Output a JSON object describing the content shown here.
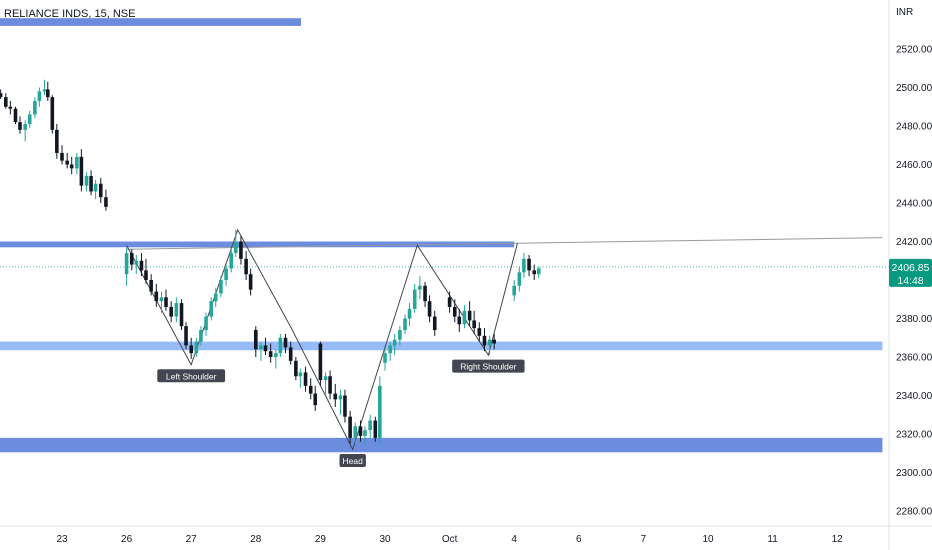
{
  "chart_data": {
    "type": "candlestick",
    "title": "RELIANCE INDS, 15, NSE",
    "currency": "INR",
    "y_ticks": [
      2280,
      2300,
      2320,
      2340,
      2360,
      2380,
      2400,
      2420,
      2440,
      2460,
      2480,
      2500,
      2520
    ],
    "y_tick_labels": [
      "2280.00",
      "2300.00",
      "2320.00",
      "2340.00",
      "2360.00",
      "2380.00",
      "2400.00",
      "2420.00",
      "2440.00",
      "2460.00",
      "2480.00",
      "2500.00",
      "2520.00"
    ],
    "ylim": [
      2272,
      2542
    ],
    "x_labels": [
      "23",
      "26",
      "27",
      "28",
      "29",
      "30",
      "Oct",
      "4",
      "6",
      "7",
      "10",
      "11",
      "12"
    ],
    "session_positions": [
      0,
      1,
      2,
      3,
      4,
      5,
      6,
      7,
      8,
      9,
      10,
      11,
      12
    ],
    "current_price": {
      "value": 2406.85,
      "label": "2406.85",
      "countdown": "14:48"
    },
    "zones": [
      {
        "from_session": -1,
        "to_session": 7.0,
        "low": 2417.0,
        "high": 2420.0,
        "color": "#5b7fdb"
      },
      {
        "from_session": -1,
        "to_session": 12.7,
        "low": 2363.5,
        "high": 2368.0,
        "color": "#8cb4f5"
      },
      {
        "from_session": -1,
        "to_session": 12.7,
        "low": 2310.5,
        "high": 2318.0,
        "color": "#5b7fdb"
      },
      {
        "from_session": -1,
        "to_session": 3.7,
        "low": 2532.0,
        "high": 2536.0,
        "color": "#5b7fdb"
      }
    ],
    "neckline": {
      "from": [
        1.0,
        2416
      ],
      "to": [
        12.7,
        2422
      ]
    },
    "pattern_line": [
      [
        1.0,
        2418
      ],
      [
        2.0,
        2356
      ],
      [
        2.72,
        2426
      ],
      [
        3.55,
        2375
      ],
      [
        4.5,
        2312
      ],
      [
        5.5,
        2418
      ],
      [
        6.6,
        2361
      ],
      [
        7.05,
        2419
      ]
    ],
    "pattern_labels": [
      {
        "text": "Left Shoulder",
        "session": 2.0,
        "price": 2350
      },
      {
        "text": "Head",
        "session": 4.5,
        "price": 2306
      },
      {
        "text": "Right Shoulder",
        "session": 6.6,
        "price": 2355
      }
    ],
    "candles": [
      [
        -0.95,
        2497,
        2499,
        2494,
        2495
      ],
      [
        -0.87,
        2495,
        2497,
        2489,
        2490
      ],
      [
        -0.8,
        2490,
        2493,
        2486,
        2489
      ],
      [
        -0.72,
        2489,
        2490,
        2481,
        2482
      ],
      [
        -0.65,
        2482,
        2485,
        2476,
        2478
      ],
      [
        -0.57,
        2478,
        2483,
        2472,
        2481
      ],
      [
        -0.5,
        2481,
        2488,
        2479,
        2486
      ],
      [
        -0.42,
        2486,
        2495,
        2484,
        2493
      ],
      [
        -0.35,
        2493,
        2500,
        2490,
        2498
      ],
      [
        -0.27,
        2498,
        2504,
        2496,
        2499
      ],
      [
        -0.22,
        2499,
        2503,
        2493,
        2495
      ],
      [
        -0.15,
        2495,
        2496,
        2476,
        2478
      ],
      [
        -0.08,
        2478,
        2481,
        2463,
        2466
      ],
      [
        0.0,
        2466,
        2470,
        2460,
        2462
      ],
      [
        0.08,
        2462,
        2466,
        2458,
        2460
      ],
      [
        0.15,
        2460,
        2464,
        2455,
        2458
      ],
      [
        0.23,
        2458,
        2466,
        2455,
        2464
      ],
      [
        0.3,
        2464,
        2468,
        2446,
        2449
      ],
      [
        0.38,
        2449,
        2456,
        2446,
        2454
      ],
      [
        0.45,
        2454,
        2457,
        2444,
        2446
      ],
      [
        0.52,
        2446,
        2452,
        2442,
        2450
      ],
      [
        0.6,
        2450,
        2453,
        2440,
        2443
      ],
      [
        0.68,
        2443,
        2447,
        2436,
        2438
      ],
      [
        1.0,
        2403,
        2417,
        2397,
        2414
      ],
      [
        1.08,
        2414,
        2416,
        2405,
        2408
      ],
      [
        1.15,
        2408,
        2413,
        2403,
        2410
      ],
      [
        1.23,
        2410,
        2414,
        2402,
        2405
      ],
      [
        1.3,
        2405,
        2411,
        2398,
        2400
      ],
      [
        1.38,
        2400,
        2403,
        2392,
        2394
      ],
      [
        1.46,
        2394,
        2398,
        2386,
        2389
      ],
      [
        1.54,
        2389,
        2394,
        2383,
        2391
      ],
      [
        1.61,
        2391,
        2395,
        2384,
        2386
      ],
      [
        1.69,
        2386,
        2389,
        2378,
        2381
      ],
      [
        1.77,
        2381,
        2391,
        2378,
        2388
      ],
      [
        1.85,
        2388,
        2390,
        2374,
        2376
      ],
      [
        1.92,
        2376,
        2378,
        2364,
        2366
      ],
      [
        2.0,
        2366,
        2370,
        2359,
        2362
      ],
      [
        2.08,
        2362,
        2370,
        2360,
        2368
      ],
      [
        2.15,
        2368,
        2376,
        2366,
        2374
      ],
      [
        2.23,
        2374,
        2383,
        2371,
        2381
      ],
      [
        2.31,
        2381,
        2391,
        2379,
        2389
      ],
      [
        2.38,
        2389,
        2396,
        2386,
        2393
      ],
      [
        2.46,
        2393,
        2402,
        2391,
        2400
      ],
      [
        2.54,
        2400,
        2408,
        2397,
        2406
      ],
      [
        2.62,
        2406,
        2416,
        2404,
        2414
      ],
      [
        2.69,
        2414,
        2426,
        2412,
        2420
      ],
      [
        2.77,
        2420,
        2423,
        2408,
        2411
      ],
      [
        2.85,
        2411,
        2415,
        2400,
        2403
      ],
      [
        2.92,
        2403,
        2406,
        2392,
        2395
      ],
      [
        3.0,
        2374,
        2376,
        2360,
        2364
      ],
      [
        3.08,
        2364,
        2368,
        2358,
        2366
      ],
      [
        3.15,
        2366,
        2370,
        2361,
        2363
      ],
      [
        3.23,
        2363,
        2367,
        2357,
        2360
      ],
      [
        3.31,
        2360,
        2364,
        2354,
        2362
      ],
      [
        3.38,
        2362,
        2372,
        2360,
        2370
      ],
      [
        3.46,
        2370,
        2372,
        2362,
        2365
      ],
      [
        3.54,
        2365,
        2368,
        2356,
        2358
      ],
      [
        3.62,
        2358,
        2360,
        2348,
        2350
      ],
      [
        3.69,
        2350,
        2354,
        2344,
        2352
      ],
      [
        3.77,
        2352,
        2355,
        2342,
        2345
      ],
      [
        3.85,
        2345,
        2349,
        2338,
        2341
      ],
      [
        3.92,
        2341,
        2345,
        2332,
        2335
      ],
      [
        4.0,
        2367,
        2368,
        2345,
        2348
      ],
      [
        4.08,
        2348,
        2352,
        2340,
        2350
      ],
      [
        4.15,
        2350,
        2353,
        2338,
        2341
      ],
      [
        4.23,
        2341,
        2346,
        2334,
        2338
      ],
      [
        4.31,
        2338,
        2343,
        2330,
        2340
      ],
      [
        4.38,
        2340,
        2343,
        2326,
        2329
      ],
      [
        4.46,
        2329,
        2332,
        2315,
        2318
      ],
      [
        4.54,
        2318,
        2326,
        2314,
        2324
      ],
      [
        4.62,
        2324,
        2327,
        2316,
        2319
      ],
      [
        4.69,
        2319,
        2324,
        2314,
        2322
      ],
      [
        4.77,
        2322,
        2330,
        2318,
        2327
      ],
      [
        4.85,
        2327,
        2329,
        2316,
        2318
      ],
      [
        4.92,
        2318,
        2350,
        2315,
        2345
      ],
      [
        5.0,
        2357,
        2364,
        2353,
        2362
      ],
      [
        5.08,
        2362,
        2368,
        2358,
        2366
      ],
      [
        5.15,
        2366,
        2372,
        2361,
        2369
      ],
      [
        5.23,
        2369,
        2376,
        2366,
        2374
      ],
      [
        5.31,
        2374,
        2382,
        2372,
        2380
      ],
      [
        5.38,
        2380,
        2388,
        2376,
        2385
      ],
      [
        5.46,
        2385,
        2398,
        2383,
        2395
      ],
      [
        5.54,
        2395,
        2402,
        2390,
        2397
      ],
      [
        5.62,
        2397,
        2399,
        2386,
        2389
      ],
      [
        5.69,
        2389,
        2392,
        2378,
        2381
      ],
      [
        5.77,
        2381,
        2384,
        2371,
        2374
      ],
      [
        6.0,
        2391,
        2394,
        2383,
        2386
      ],
      [
        6.08,
        2386,
        2390,
        2378,
        2381
      ],
      [
        6.15,
        2381,
        2385,
        2373,
        2377
      ],
      [
        6.23,
        2377,
        2387,
        2375,
        2384
      ],
      [
        6.31,
        2384,
        2389,
        2376,
        2379
      ],
      [
        6.38,
        2379,
        2384,
        2372,
        2375
      ],
      [
        6.46,
        2375,
        2378,
        2368,
        2371
      ],
      [
        6.54,
        2371,
        2375,
        2363,
        2366
      ],
      [
        6.62,
        2366,
        2371,
        2361,
        2369
      ],
      [
        6.69,
        2369,
        2372,
        2364,
        2367
      ],
      [
        7.0,
        2392,
        2400,
        2389,
        2397
      ],
      [
        7.08,
        2397,
        2407,
        2394,
        2404
      ],
      [
        7.15,
        2404,
        2414,
        2401,
        2411
      ],
      [
        7.23,
        2411,
        2413,
        2402,
        2405
      ],
      [
        7.31,
        2405,
        2408,
        2400,
        2403
      ],
      [
        7.38,
        2403,
        2407,
        2401,
        2406
      ]
    ]
  }
}
